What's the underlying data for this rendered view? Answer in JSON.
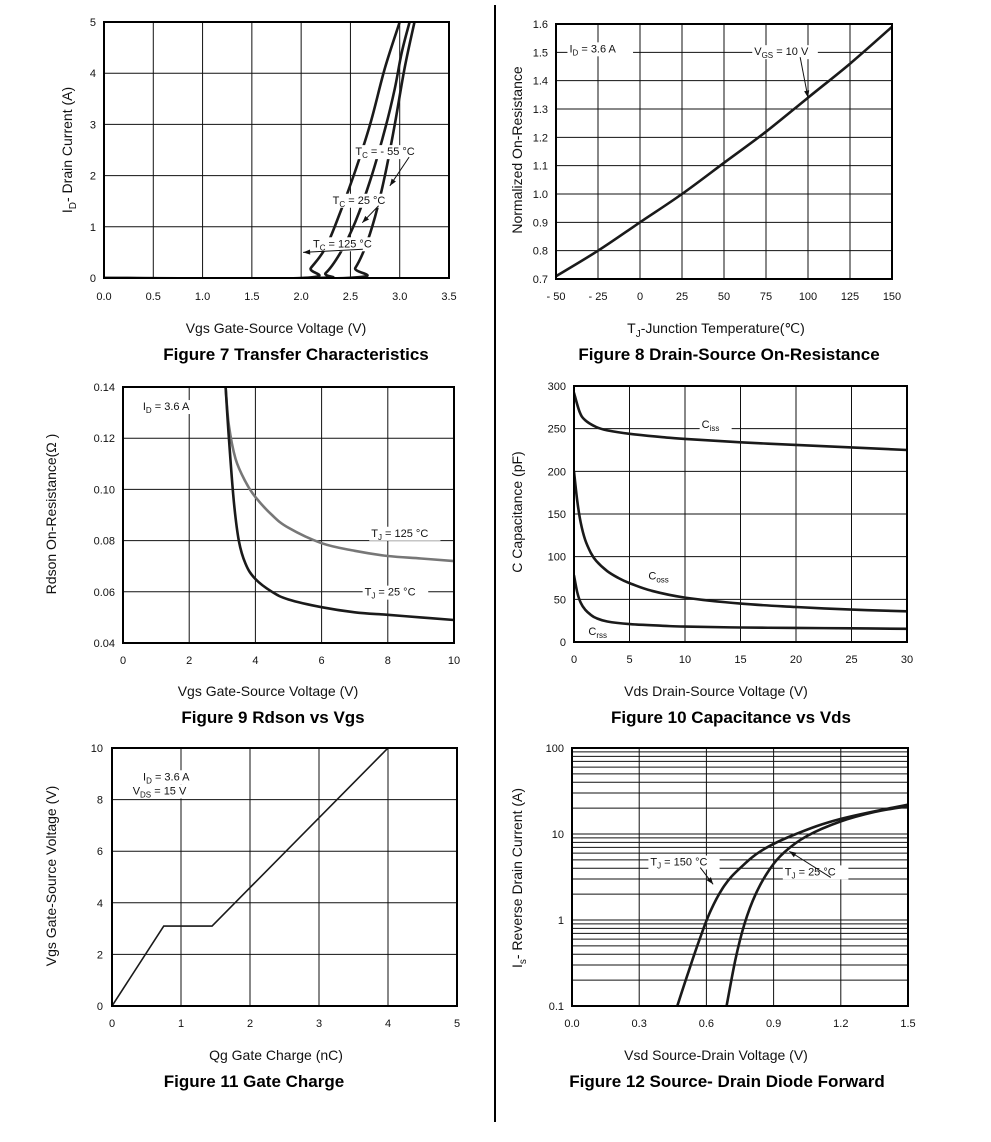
{
  "chart_data": [
    {
      "id": "fig7",
      "type": "line",
      "title": "Figure 7 Transfer Characteristics",
      "xlabel": "Vgs Gate-Source Voltage (V)",
      "ylabel": "I_D- Drain Current (A)",
      "xlim": [
        0,
        3.5
      ],
      "ylim": [
        0,
        5
      ],
      "xticks": [
        "0.0",
        "0.5",
        "1.0",
        "1.5",
        "2.0",
        "2.5",
        "3.0",
        "3.5"
      ],
      "yticks": [
        "0",
        "1",
        "2",
        "3",
        "4",
        "5"
      ],
      "grid": true,
      "series": [
        {
          "name": "T_C = - 55 °C",
          "x": [
            0.0,
            2.12,
            2.25,
            2.4,
            2.55,
            2.7,
            2.85,
            2.95,
            3.02,
            3.1
          ],
          "y": [
            0.0,
            0.0,
            0.1,
            0.5,
            1.1,
            1.9,
            2.9,
            3.7,
            4.4,
            5.0
          ]
        },
        {
          "name": "T_C = 25 °C",
          "x": [
            0.0,
            2.45,
            2.55,
            2.65,
            2.75,
            2.85,
            2.95,
            3.05,
            3.15
          ],
          "y": [
            0.0,
            0.0,
            0.2,
            0.6,
            1.2,
            2.0,
            3.0,
            4.1,
            5.0
          ]
        },
        {
          "name": "T_C = 125 °C",
          "x": [
            0.0,
            2.0,
            2.1,
            2.25,
            2.4,
            2.55,
            2.7,
            2.85,
            3.0
          ],
          "y": [
            0.0,
            0.0,
            0.2,
            0.6,
            1.3,
            2.1,
            3.0,
            4.1,
            5.0
          ]
        }
      ],
      "annotations": [
        {
          "text": "T_C = - 55 °C",
          "x": 2.55,
          "y": 2.4,
          "tx": 2.9,
          "ty": 1.8
        },
        {
          "text": "T_C = 25 °C",
          "x": 2.32,
          "y": 1.45,
          "tx": 2.62,
          "ty": 1.08
        },
        {
          "text": "T_C = 125 °C",
          "x": 2.12,
          "y": 0.6,
          "tx": 2.02,
          "ty": 0.5
        }
      ]
    },
    {
      "id": "fig8",
      "type": "line",
      "title": "Figure 8 Drain-Source On-Resistance",
      "xlabel": "T_J-Junction Temperature(℃)",
      "ylabel": "Normalized On-Resistance",
      "xlim": [
        -50,
        150
      ],
      "ylim": [
        0.7,
        1.6
      ],
      "xticks": [
        "- 50",
        "- 25",
        "0",
        "25",
        "50",
        "75",
        "100",
        "125",
        "150"
      ],
      "yticks": [
        "0.7",
        "0.8",
        "0.9",
        "1.0",
        "1.1",
        "1.2",
        "1.3",
        "1.4",
        "1.5",
        "1.6"
      ],
      "grid": true,
      "series": [
        {
          "name": "V_GS = 10 V",
          "x": [
            -50,
            -25,
            0,
            25,
            50,
            75,
            100,
            125,
            150
          ],
          "y": [
            0.71,
            0.8,
            0.9,
            1.0,
            1.11,
            1.22,
            1.34,
            1.46,
            1.59
          ]
        }
      ],
      "annotations": [
        {
          "text": "V_GS = 10 V",
          "x": 68,
          "y": 1.49,
          "tx": 100,
          "ty": 1.34
        },
        {
          "text": "I_D = 3.6 A",
          "x": -42,
          "y": 1.5
        }
      ]
    },
    {
      "id": "fig9",
      "type": "line",
      "title": "Figure 9 Rdson vs Vgs",
      "xlabel": "Vgs Gate-Source Voltage (V)",
      "ylabel": "Rdson On-Resistance(Ω )",
      "xlim": [
        0,
        10
      ],
      "ylim": [
        0.04,
        0.14
      ],
      "xticks": [
        "0",
        "2",
        "4",
        "6",
        "8",
        "10"
      ],
      "yticks": [
        "0.04",
        "0.06",
        "0.08",
        "0.10",
        "0.12",
        "0.14"
      ],
      "grid": true,
      "series": [
        {
          "name": "T_J = 125 °C",
          "x": [
            3.1,
            3.2,
            3.4,
            3.7,
            4.0,
            4.5,
            5.0,
            6.0,
            7.0,
            8.0,
            9.0,
            10.0
          ],
          "y": [
            0.14,
            0.125,
            0.112,
            0.103,
            0.097,
            0.09,
            0.085,
            0.079,
            0.076,
            0.074,
            0.073,
            0.072
          ]
        },
        {
          "name": "T_J = 25 °C",
          "x": [
            3.1,
            3.2,
            3.35,
            3.5,
            3.7,
            4.0,
            4.5,
            5.0,
            6.0,
            7.0,
            8.0,
            9.0,
            10.0
          ],
          "y": [
            0.14,
            0.12,
            0.095,
            0.08,
            0.071,
            0.065,
            0.06,
            0.057,
            0.054,
            0.052,
            0.051,
            0.05,
            0.049
          ]
        }
      ],
      "annotations": [
        {
          "text": "T_J = 125 °C",
          "x": 7.5,
          "y": 0.0815
        },
        {
          "text": "T_J = 25 °C",
          "x": 7.3,
          "y": 0.0585
        },
        {
          "text": "I_D = 3.6 A",
          "x": 0.6,
          "y": 0.131
        }
      ]
    },
    {
      "id": "fig10",
      "type": "line",
      "title": "Figure 10 Capacitance vs Vds",
      "xlabel": "Vds Drain-Source Voltage (V)",
      "ylabel": "C Capacitance (pF)",
      "xlim": [
        0,
        30
      ],
      "ylim": [
        0,
        300
      ],
      "xticks": [
        "0",
        "5",
        "10",
        "15",
        "20",
        "25",
        "30"
      ],
      "yticks": [
        "0",
        "50",
        "100",
        "150",
        "200",
        "250",
        "300"
      ],
      "grid": true,
      "series": [
        {
          "name": "C_iss",
          "x": [
            0,
            0.5,
            1,
            2,
            3,
            5,
            8,
            10,
            15,
            20,
            25,
            30
          ],
          "y": [
            292,
            270,
            260,
            252,
            248,
            244,
            240,
            238,
            234,
            231,
            228,
            225
          ]
        },
        {
          "name": "C_oss",
          "x": [
            0,
            0.3,
            0.6,
            1,
            1.5,
            2,
            3,
            4,
            5,
            7,
            10,
            15,
            20,
            25,
            30
          ],
          "y": [
            200,
            165,
            140,
            120,
            105,
            95,
            83,
            75,
            69,
            60,
            52,
            45,
            41,
            38,
            36
          ]
        },
        {
          "name": "C_rss",
          "x": [
            0,
            0.3,
            0.6,
            1,
            1.5,
            2,
            3,
            5,
            8,
            10,
            15,
            20,
            25,
            30
          ],
          "y": [
            78,
            58,
            46,
            38,
            32,
            28,
            24,
            21,
            19,
            18,
            17,
            16.5,
            16,
            15.5
          ]
        }
      ],
      "annotations": [
        {
          "text": "C_iss",
          "x": 11.5,
          "y": 251
        },
        {
          "text": "C_oss",
          "x": 6.7,
          "y": 73
        },
        {
          "text": "C_rss",
          "x": 1.3,
          "y": 8
        }
      ]
    },
    {
      "id": "fig11",
      "type": "line",
      "title": "Figure 11 Gate Charge",
      "xlabel": "Qg Gate Charge (nC)",
      "ylabel": "Vgs Gate-Source Voltage (V)",
      "xlim": [
        0,
        5
      ],
      "ylim": [
        0,
        10
      ],
      "xticks": [
        "0",
        "1",
        "2",
        "3",
        "4",
        "5"
      ],
      "yticks": [
        "0",
        "2",
        "4",
        "6",
        "8",
        "10"
      ],
      "grid": true,
      "series": [
        {
          "name": "",
          "x": [
            0,
            0.75,
            1.45,
            4.0
          ],
          "y": [
            0,
            3.1,
            3.1,
            10.0
          ]
        }
      ],
      "annotations": [
        {
          "text": "I_D = 3.6 A",
          "x": 0.45,
          "y": 8.75
        },
        {
          "text": "V_DS = 15 V",
          "x": 0.3,
          "y": 8.2
        }
      ]
    },
    {
      "id": "fig12",
      "type": "line",
      "title": "Figure 12 Source- Drain Diode Forward",
      "xlabel": "Vsd Source-Drain Voltage (V)",
      "ylabel": "I_s- Reverse Drain Current (A)",
      "xlim": [
        0,
        1.5
      ],
      "ylim": [
        0.1,
        100
      ],
      "yscale": "log",
      "xticks": [
        "0.0",
        "0.3",
        "0.6",
        "0.9",
        "1.2",
        "1.5"
      ],
      "yticks": [
        "0.1",
        "1",
        "10",
        "100"
      ],
      "grid": true,
      "series": [
        {
          "name": "T_J = 150 °C",
          "x": [
            0.47,
            0.52,
            0.57,
            0.62,
            0.68,
            0.75,
            0.85,
            1.0,
            1.2,
            1.5
          ],
          "y": [
            0.1,
            0.25,
            0.6,
            1.3,
            2.5,
            4.0,
            6.5,
            10,
            15,
            22
          ]
        },
        {
          "name": "T_J = 25 °C",
          "x": [
            0.69,
            0.73,
            0.77,
            0.82,
            0.88,
            0.95,
            1.05,
            1.2,
            1.35,
            1.5
          ],
          "y": [
            0.1,
            0.35,
            0.9,
            2.0,
            3.8,
            6.2,
            9.5,
            14,
            18,
            21
          ]
        }
      ],
      "annotations": [
        {
          "text": "T_J = 150 °C",
          "x": 0.35,
          "y": 4.3,
          "tx": 0.63,
          "ty": 2.6
        },
        {
          "text": "T_J = 25 °C",
          "x": 0.95,
          "y": 3.3,
          "tx": 0.97,
          "ty": 6.3
        }
      ]
    }
  ]
}
